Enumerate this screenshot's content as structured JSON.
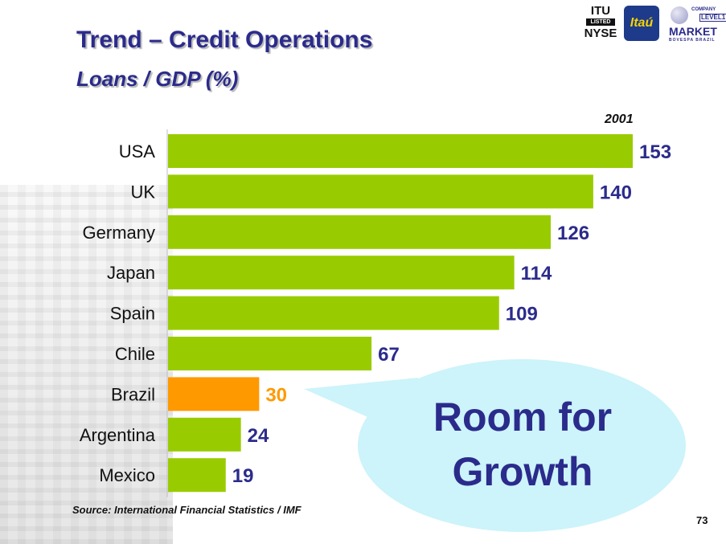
{
  "slide": {
    "title": "Trend – Credit Operations",
    "subtitle": "Loans / GDP (%)",
    "year_label": "2001",
    "source": "Source: International Financial Statistics / IMF",
    "page_number": "73"
  },
  "logos": {
    "nyse_line1": "ITU",
    "nyse_line2": "LISTED",
    "nyse_line3": "NYSE",
    "itau": "Itaú",
    "level_line1": "COMPANY",
    "level_line2": "LEVEL1",
    "level_line3": "MARKET",
    "level_line4": "BOVESPA BRAZIL"
  },
  "callout": {
    "line1": "Room for",
    "line2": "Growth"
  },
  "chart_data": {
    "type": "bar",
    "orientation": "horizontal",
    "categories": [
      "USA",
      "UK",
      "Germany",
      "Japan",
      "Spain",
      "Chile",
      "Brazil",
      "Argentina",
      "Mexico"
    ],
    "values": [
      153,
      140,
      126,
      114,
      109,
      67,
      30,
      24,
      19
    ],
    "highlight_category": "Brazil",
    "colors": {
      "bar": "#99CC00",
      "highlight": "#FF9900",
      "label": "#2B2B8C",
      "highlight_label": "#FF9900"
    },
    "xlim": [
      0,
      153
    ],
    "grid": false,
    "legend": "none"
  }
}
